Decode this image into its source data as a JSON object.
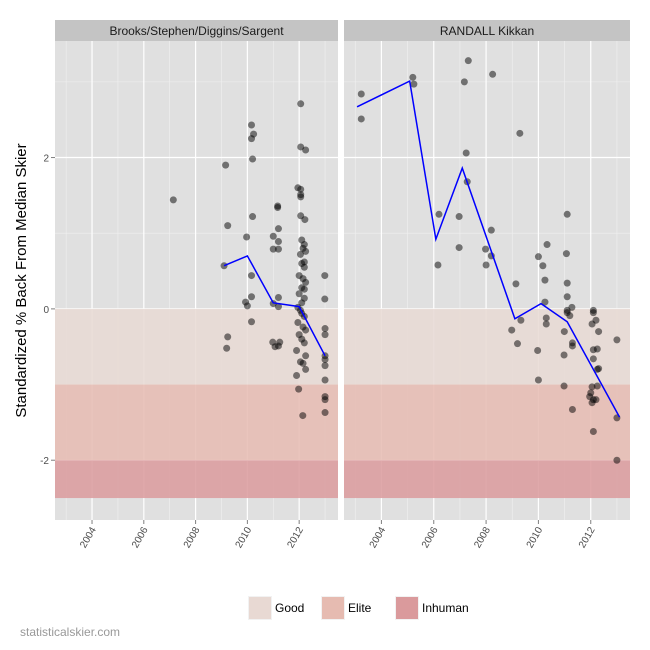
{
  "chart_data": {
    "type": "scatter",
    "ylabel": "Standardized % Back From Median Skier",
    "xlim": [
      2002.57,
      2013.5
    ],
    "ylim": [
      -2.79,
      3.54
    ],
    "x_ticks": [
      "2004",
      "2006",
      "2008",
      "2010",
      "2012"
    ],
    "x_tick_values": [
      2004,
      2006,
      2008,
      2010,
      2012
    ],
    "y_ticks": [
      "-2",
      "0",
      "2"
    ],
    "y_tick_values": [
      -2,
      0,
      2
    ],
    "grid": true,
    "bands": [
      {
        "label": "Good",
        "from": 0,
        "to": -1,
        "color": "#e8d9d3"
      },
      {
        "label": "Elite",
        "from": -1,
        "to": -2,
        "color": "#e6bbb1"
      },
      {
        "label": "Inhuman",
        "from": -2,
        "to": -2.5,
        "color": "#da9a9c"
      }
    ],
    "legend_position": "bottom",
    "line_color": "#0000ff",
    "panels": [
      {
        "title": "Brooks/Stephen/Diggins/Sargent",
        "points": [
          [
            2007.14,
            1.44
          ],
          [
            2009.16,
            1.9
          ],
          [
            2009.24,
            1.1
          ],
          [
            2009.1,
            0.57
          ],
          [
            2009.24,
            -0.37
          ],
          [
            2009.2,
            -0.52
          ],
          [
            2009.97,
            0.95
          ],
          [
            2010.16,
            2.43
          ],
          [
            2010.24,
            2.31
          ],
          [
            2010.16,
            2.25
          ],
          [
            2010.2,
            1.98
          ],
          [
            2010.2,
            1.22
          ],
          [
            2010.16,
            0.44
          ],
          [
            2010.16,
            0.16
          ],
          [
            2009.93,
            0.09
          ],
          [
            2010.0,
            0.04
          ],
          [
            2010.16,
            -0.17
          ],
          [
            2011.17,
            1.36
          ],
          [
            2011.17,
            1.34
          ],
          [
            2011.0,
            0.96
          ],
          [
            2011.2,
            1.06
          ],
          [
            2011.2,
            0.89
          ],
          [
            2011.0,
            0.79
          ],
          [
            2011.2,
            0.79
          ],
          [
            2011.2,
            0.15
          ],
          [
            2011.0,
            0.07
          ],
          [
            2011.2,
            0.03
          ],
          [
            2010.98,
            -0.44
          ],
          [
            2011.07,
            -0.5
          ],
          [
            2011.25,
            -0.44
          ],
          [
            2011.2,
            -0.49
          ],
          [
            2012.06,
            2.71
          ],
          [
            2012.06,
            2.14
          ],
          [
            2012.25,
            2.1
          ],
          [
            2011.95,
            1.6
          ],
          [
            2012.06,
            1.58
          ],
          [
            2012.06,
            1.51
          ],
          [
            2012.06,
            1.48
          ],
          [
            2012.06,
            1.23
          ],
          [
            2012.22,
            1.18
          ],
          [
            2012.1,
            0.91
          ],
          [
            2012.2,
            0.85
          ],
          [
            2012.15,
            0.8
          ],
          [
            2012.25,
            0.76
          ],
          [
            2012.05,
            0.72
          ],
          [
            2012.2,
            0.62
          ],
          [
            2012.1,
            0.6
          ],
          [
            2012.2,
            0.55
          ],
          [
            2012.0,
            0.44
          ],
          [
            2012.15,
            0.4
          ],
          [
            2012.25,
            0.35
          ],
          [
            2012.1,
            0.28
          ],
          [
            2012.2,
            0.26
          ],
          [
            2012.0,
            0.2
          ],
          [
            2012.2,
            0.14
          ],
          [
            2012.1,
            0.08
          ],
          [
            2011.95,
            0.02
          ],
          [
            2012.05,
            -0.02
          ],
          [
            2012.1,
            -0.06
          ],
          [
            2012.2,
            -0.1
          ],
          [
            2011.95,
            -0.18
          ],
          [
            2012.15,
            -0.24
          ],
          [
            2012.25,
            -0.28
          ],
          [
            2012.0,
            -0.34
          ],
          [
            2012.1,
            -0.4
          ],
          [
            2012.2,
            -0.45
          ],
          [
            2011.9,
            -0.55
          ],
          [
            2012.25,
            -0.62
          ],
          [
            2012.05,
            -0.7
          ],
          [
            2012.15,
            -0.72
          ],
          [
            2012.25,
            -0.8
          ],
          [
            2011.9,
            -0.88
          ],
          [
            2011.98,
            -1.06
          ],
          [
            2012.14,
            -1.41
          ],
          [
            2012.99,
            0.44
          ],
          [
            2012.99,
            0.13
          ],
          [
            2013.0,
            -0.26
          ],
          [
            2013.0,
            -0.34
          ],
          [
            2013.0,
            -0.62
          ],
          [
            2013.0,
            -0.67
          ],
          [
            2013.0,
            -0.75
          ],
          [
            2013.0,
            -0.94
          ],
          [
            2013.0,
            -1.16
          ],
          [
            2013.0,
            -1.2
          ],
          [
            2013.0,
            -1.37
          ]
        ],
        "line": [
          [
            2009.1,
            0.57
          ],
          [
            2010.0,
            0.7
          ],
          [
            2011.0,
            0.08
          ],
          [
            2012.0,
            0.03
          ],
          [
            2013.0,
            -0.62
          ]
        ]
      },
      {
        "title": "RANDALL Kikkan",
        "points": [
          [
            2003.23,
            2.84
          ],
          [
            2003.23,
            2.51
          ],
          [
            2005.2,
            3.06
          ],
          [
            2005.24,
            2.97
          ],
          [
            2007.32,
            3.28
          ],
          [
            2007.17,
            3.0
          ],
          [
            2008.25,
            3.1
          ],
          [
            2007.24,
            2.06
          ],
          [
            2007.28,
            1.68
          ],
          [
            2009.29,
            2.32
          ],
          [
            2006.2,
            1.25
          ],
          [
            2006.97,
            1.22
          ],
          [
            2008.2,
            1.04
          ],
          [
            2006.97,
            0.81
          ],
          [
            2007.98,
            0.79
          ],
          [
            2008.2,
            0.7
          ],
          [
            2006.16,
            0.58
          ],
          [
            2008.0,
            0.58
          ],
          [
            2009.14,
            0.33
          ],
          [
            2011.1,
            1.25
          ],
          [
            2010.33,
            0.85
          ],
          [
            2010.0,
            0.69
          ],
          [
            2010.17,
            0.57
          ],
          [
            2011.07,
            0.73
          ],
          [
            2010.25,
            0.38
          ],
          [
            2011.1,
            0.34
          ],
          [
            2011.1,
            0.16
          ],
          [
            2010.25,
            0.09
          ],
          [
            2009.33,
            -0.15
          ],
          [
            2008.98,
            -0.28
          ],
          [
            2009.2,
            -0.46
          ],
          [
            2009.97,
            -0.55
          ],
          [
            2010.0,
            -0.94
          ],
          [
            2010.3,
            -0.12
          ],
          [
            2010.3,
            -0.2
          ],
          [
            2011.1,
            -0.02
          ],
          [
            2011.28,
            0.02
          ],
          [
            2011.1,
            -0.05
          ],
          [
            2011.2,
            -0.09
          ],
          [
            2010.99,
            -0.3
          ],
          [
            2011.3,
            -0.45
          ],
          [
            2011.3,
            -0.49
          ],
          [
            2010.98,
            -0.61
          ],
          [
            2010.98,
            -1.02
          ],
          [
            2011.3,
            -1.33
          ],
          [
            2012.1,
            -0.02
          ],
          [
            2012.1,
            -0.05
          ],
          [
            2012.2,
            -0.15
          ],
          [
            2012.05,
            -0.2
          ],
          [
            2012.3,
            -0.3
          ],
          [
            2012.1,
            -0.54
          ],
          [
            2012.25,
            -0.53
          ],
          [
            2012.1,
            -0.66
          ],
          [
            2012.3,
            -0.79
          ],
          [
            2012.25,
            -0.8
          ],
          [
            2012.05,
            -1.03
          ],
          [
            2012.25,
            -1.02
          ],
          [
            2012.0,
            -1.11
          ],
          [
            2011.96,
            -1.16
          ],
          [
            2012.1,
            -1.2
          ],
          [
            2012.05,
            -1.24
          ],
          [
            2012.2,
            -1.2
          ],
          [
            2012.1,
            -1.62
          ],
          [
            2013.0,
            -0.41
          ],
          [
            2013.0,
            -1.44
          ],
          [
            2013.0,
            -2.0
          ]
        ],
        "line": [
          [
            2003.07,
            2.67
          ],
          [
            2005.08,
            3.01
          ],
          [
            2006.08,
            0.92
          ],
          [
            2007.09,
            1.86
          ],
          [
            2009.1,
            -0.13
          ],
          [
            2010.1,
            0.07
          ],
          [
            2011.1,
            -0.17
          ],
          [
            2013.1,
            -1.43
          ]
        ]
      }
    ]
  },
  "watermark": "statisticalskier.com"
}
